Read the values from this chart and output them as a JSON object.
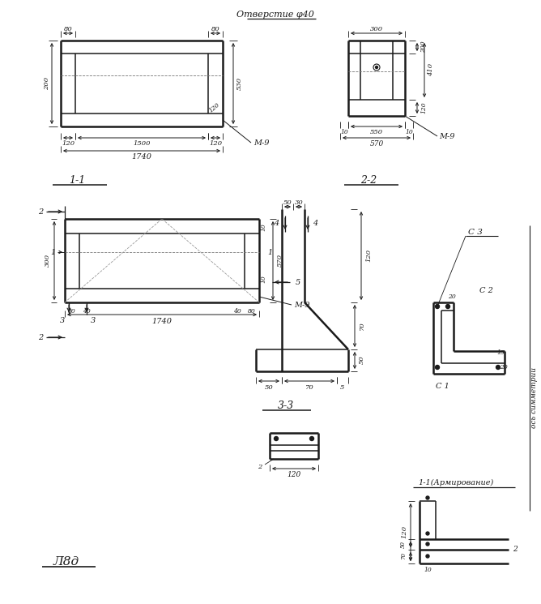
{
  "bg_color": "#ffffff",
  "line_color": "#1a1a1a",
  "title_otv": "Отверстие φ40",
  "label_11": "1-1",
  "label_22": "2-2",
  "label_33": "3-3",
  "label_11a": "1-1(Армирование)",
  "label_m9": "М-9",
  "label_l8d": "Л8д",
  "label_c1": "С 1",
  "label_c2": "С 2",
  "label_c3": "С 3",
  "label_os": "ось симметрии"
}
